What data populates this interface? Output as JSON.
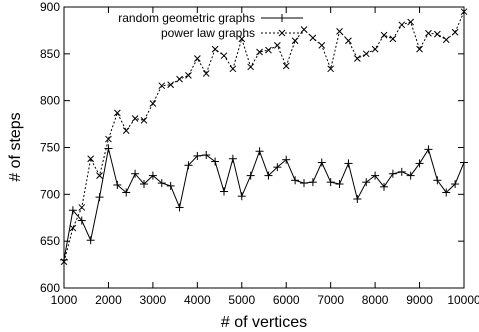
{
  "chart_data": {
    "type": "line",
    "title": "",
    "xlabel": "# of vertices",
    "ylabel": "# of steps",
    "xlim": [
      1000,
      10000
    ],
    "ylim": [
      600,
      900
    ],
    "x_ticks": [
      "1000",
      "2000",
      "3000",
      "4000",
      "5000",
      "6000",
      "7000",
      "8000",
      "9000",
      "10000"
    ],
    "y_ticks": [
      "600",
      "650",
      "700",
      "750",
      "800",
      "850",
      "900"
    ],
    "grid": false,
    "legend_position": "top-left",
    "x": [
      1000,
      1200,
      1400,
      1600,
      1800,
      2000,
      2200,
      2400,
      2600,
      2800,
      3000,
      3200,
      3400,
      3600,
      3800,
      4000,
      4200,
      4400,
      4600,
      4800,
      5000,
      5200,
      5400,
      5600,
      5800,
      6000,
      6200,
      6400,
      6600,
      6800,
      7000,
      7200,
      7400,
      7600,
      7800,
      8000,
      8200,
      8400,
      8600,
      8800,
      9000,
      9200,
      9400,
      9600,
      9800,
      10000
    ],
    "series": [
      {
        "name": "random geometric graphs",
        "style": "solid",
        "marker": "+",
        "values": [
          630,
          683,
          672,
          651,
          697,
          749,
          710,
          702,
          722,
          711,
          720,
          712,
          709,
          686,
          731,
          741,
          742,
          735,
          703,
          738,
          698,
          720,
          746,
          720,
          729,
          737,
          715,
          712,
          713,
          734,
          713,
          711,
          733,
          695,
          713,
          720,
          708,
          722,
          724,
          720,
          733,
          748,
          715,
          702,
          711,
          734
        ]
      },
      {
        "name": "power law graphs",
        "style": "dashed",
        "marker": "x",
        "values": [
          628,
          664,
          686,
          738,
          720,
          759,
          787,
          768,
          781,
          779,
          797,
          816,
          817,
          823,
          827,
          845,
          829,
          855,
          848,
          834,
          866,
          836,
          852,
          854,
          859,
          837,
          864,
          876,
          867,
          859,
          834,
          874,
          864,
          845,
          850,
          855,
          870,
          866,
          881,
          884,
          855,
          872,
          871,
          865,
          873,
          895
        ]
      }
    ]
  }
}
